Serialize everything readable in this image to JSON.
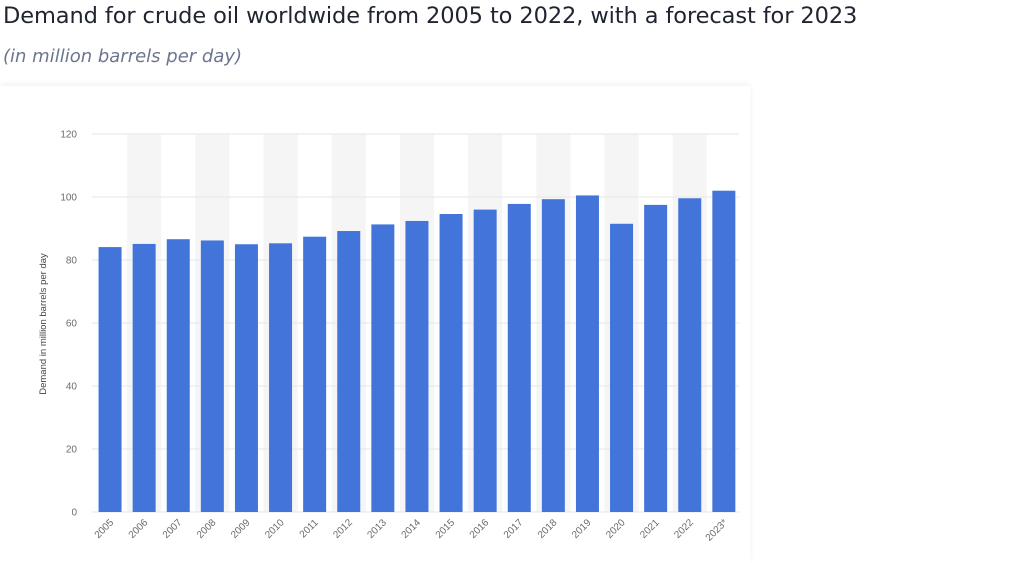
{
  "title": "Demand for crude oil worldwide from 2005 to 2022, with a forecast for 2023",
  "subtitle": "(in million barrels per day)",
  "colors": {
    "bar": "#4274d9",
    "band": "#f5f5f5",
    "grid": "#e6e6e6"
  },
  "chart_data": {
    "type": "bar",
    "categories": [
      "2005",
      "2006",
      "2007",
      "2008",
      "2009",
      "2010",
      "2011",
      "2012",
      "2013",
      "2014",
      "2015",
      "2016",
      "2017",
      "2018",
      "2019",
      "2020",
      "2021",
      "2022",
      "2023*"
    ],
    "values": [
      84.1,
      85.1,
      86.6,
      86.2,
      85.0,
      85.3,
      87.4,
      89.2,
      91.3,
      92.4,
      94.6,
      96.0,
      97.8,
      99.3,
      100.5,
      91.5,
      97.5,
      99.6,
      102.0
    ],
    "ylabel": "Demand in million barrels per day",
    "xlabel": "",
    "ylim": [
      0,
      120
    ],
    "yticks": [
      0,
      20,
      40,
      60,
      80,
      100,
      120
    ],
    "grid": true,
    "alternating_bands": true
  }
}
